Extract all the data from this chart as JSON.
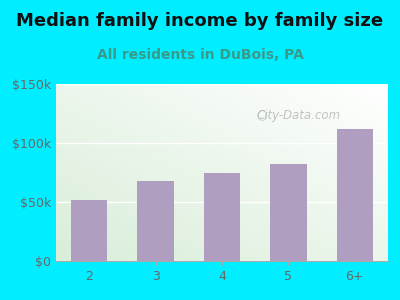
{
  "title": "Median family income by family size",
  "subtitle": "All residents in DuBois, PA",
  "categories": [
    "2",
    "3",
    "4",
    "5",
    "6+"
  ],
  "values": [
    52000,
    68000,
    75000,
    82000,
    112000
  ],
  "bar_color": "#b09ec0",
  "title_fontsize": 13,
  "subtitle_fontsize": 10,
  "subtitle_color": "#3a9a8a",
  "title_color": "#111111",
  "ylim": [
    0,
    150000
  ],
  "yticks": [
    0,
    50000,
    100000,
    150000
  ],
  "ytick_labels": [
    "$0",
    "$50k",
    "$100k",
    "$150k"
  ],
  "bg_outer": "#00eeff",
  "watermark": "City-Data.com",
  "tick_color": "#666666",
  "tick_fontsize": 9
}
